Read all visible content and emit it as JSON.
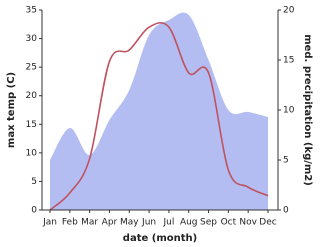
{
  "chart_data": {
    "type": "line_area",
    "x_label": "date (month)",
    "y_label": "max temp (C)",
    "y2_label": "med. precipitation (kg/m2)",
    "categories": [
      "Jan",
      "Feb",
      "Mar",
      "Apr",
      "May",
      "Jun",
      "Jul",
      "Aug",
      "Sep",
      "Oct",
      "Nov",
      "Dec"
    ],
    "series": [
      {
        "name": "max temp",
        "kind": "line",
        "color": "#c0525f",
        "values": [
          0,
          3,
          9,
          26,
          28,
          32,
          32,
          24,
          24,
          7,
          4,
          2.5
        ]
      },
      {
        "name": "med. precipitation",
        "kind": "area",
        "axis": "y2",
        "color": "#b3bdf2",
        "values": [
          5,
          8.2,
          5.5,
          9,
          12,
          17.5,
          19,
          19.5,
          15,
          10,
          9.8,
          9.3
        ]
      }
    ],
    "ylim": [
      0,
      35
    ],
    "yticks": [
      0,
      5,
      10,
      15,
      20,
      25,
      30,
      35
    ],
    "y2lim": [
      0,
      20
    ],
    "y2ticks": [
      0,
      5,
      10,
      15,
      20
    ]
  }
}
